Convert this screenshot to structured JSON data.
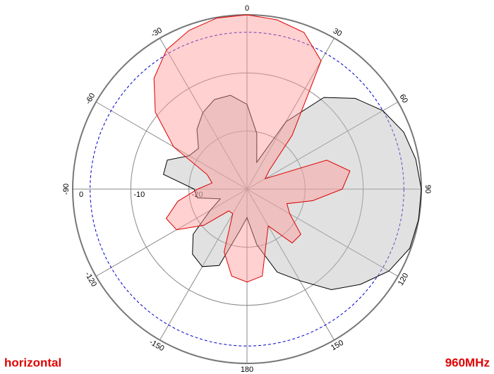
{
  "chart_data": {
    "type": "polar",
    "polarization": "horizontal",
    "frequency": "960MHz",
    "theta": [
      0,
      10,
      20,
      30,
      40,
      50,
      60,
      70,
      80,
      90,
      100,
      110,
      120,
      130,
      140,
      150,
      160,
      170,
      180,
      -170,
      -160,
      -150,
      -140,
      -130,
      -120,
      -110,
      -100,
      -90,
      -80,
      -70,
      -60,
      -50,
      -40,
      -30,
      -20,
      -10
    ],
    "thetaticks": [
      0,
      30,
      60,
      90,
      120,
      150,
      180,
      -150,
      -120,
      -90,
      -60,
      -30
    ],
    "rlim": [
      -30,
      0
    ],
    "rticks": [
      -20,
      -10,
      0
    ],
    "reference_circle": -3,
    "reference_color": "#0000cc",
    "series": [
      {
        "color": "#000000",
        "fill": "#bdbdbd",
        "values": [
          -15.4,
          -20.3,
          -25.1,
          -16.6,
          -9.4,
          -5.7,
          -3,
          -1.3,
          -0.5,
          0,
          0,
          -0.2,
          -1.8,
          -4.5,
          -7.4,
          -11.8,
          -14.8,
          -20.3,
          -25.1,
          -22.7,
          -16,
          -14.6,
          -15.4,
          -17.9,
          -22.7,
          -25.1,
          -21.3,
          -20.9,
          -15.4,
          -15.4,
          -18.5,
          -19.1,
          -16.6,
          -14.8,
          -13.6,
          -13.6
        ]
      },
      {
        "color": "#dd0000",
        "fill": "#ff9999",
        "values": [
          0,
          -0.4,
          -1.3,
          -4.5,
          -17.9,
          -25,
          -26.4,
          -15.4,
          -12,
          -13.6,
          -18.5,
          -22.7,
          -21.5,
          -17.9,
          -17.9,
          -22.7,
          -20.3,
          -14.8,
          -14,
          -14.8,
          -18.5,
          -25.1,
          -25.1,
          -20.3,
          -16,
          -15.2,
          -17.9,
          -21.5,
          -23.9,
          -22.7,
          -15.4,
          -9.4,
          -5.1,
          -2.3,
          -0.9,
          -0.1
        ]
      }
    ]
  }
}
